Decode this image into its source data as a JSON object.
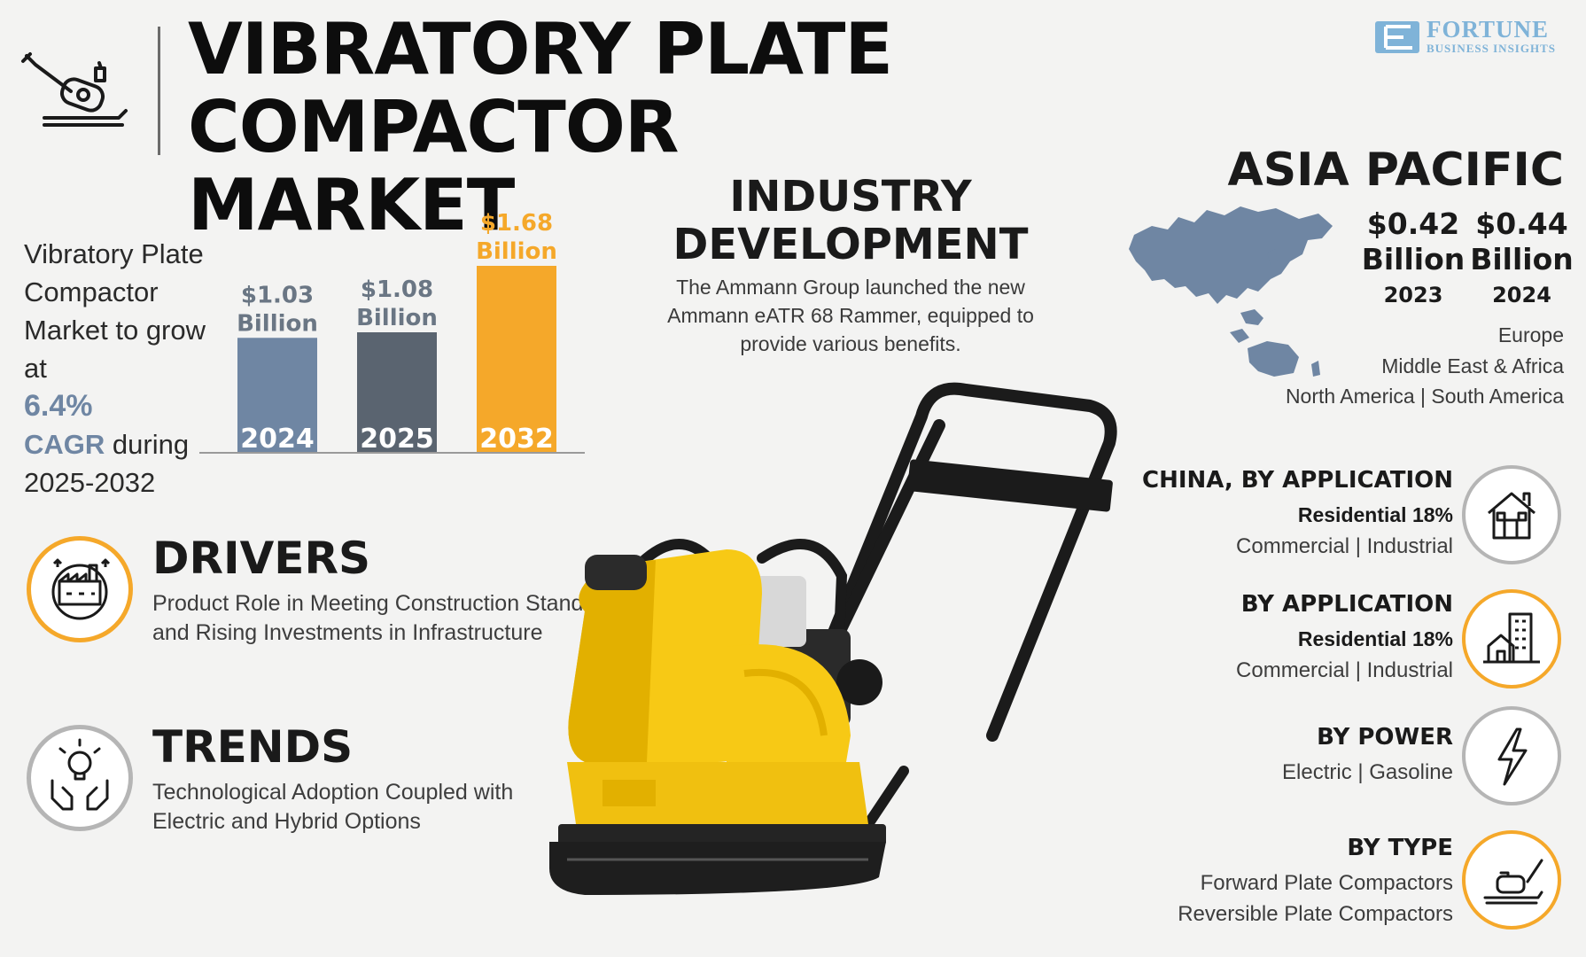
{
  "header": {
    "title_line1": "VIBRATORY PLATE COMPACTOR",
    "title_line2": "MARKET",
    "brand_name": "FORTUNE",
    "brand_sub": "BUSINESS INSIGHTS"
  },
  "cagr": {
    "lead": "Vibratory Plate Compactor Market to grow at",
    "value": "6.4%",
    "word": "CAGR",
    "tail": "during",
    "period": "2025-2032"
  },
  "chart_data": {
    "type": "bar",
    "categories": [
      "2024",
      "2025",
      "2032"
    ],
    "values": [
      1.03,
      1.08,
      1.68
    ],
    "value_labels": [
      "$1.03 Billion",
      "$1.08 Billion",
      "$1.68 Billion"
    ],
    "colors": [
      "#6f86a3",
      "#5a6470",
      "#f5a82a"
    ],
    "title": "",
    "xlabel": "",
    "ylabel": ""
  },
  "industry": {
    "title_line1": "INDUSTRY",
    "title_line2": "DEVELOPMENT",
    "text": "The Ammann Group launched the new Ammann eATR 68 Rammer, equipped to provide various benefits."
  },
  "region": {
    "title": "ASIA PACIFIC",
    "values": [
      {
        "amount": "$0.42",
        "unit": "Billion",
        "year": "2023"
      },
      {
        "amount": "$0.44",
        "unit": "Billion",
        "year": "2024"
      }
    ],
    "europe": "Europe",
    "mea": "Middle East & Africa",
    "na_sa": "North America  |  South America"
  },
  "drivers": {
    "title": "DRIVERS",
    "text": "Product Role in Meeting Construction Standards and Rising Investments in Infrastructure"
  },
  "trends": {
    "title": "TRENDS",
    "text": "Technological Adoption Coupled with Electric and Hybrid Options"
  },
  "segments": [
    {
      "title": "CHINA, BY APPLICATION",
      "share": "Residential 18%",
      "items": "Commercial  |  Industrial",
      "icon": "house-icon"
    },
    {
      "title": "BY APPLICATION",
      "share": "Residential 18%",
      "items": "Commercial  |  Industrial",
      "icon": "buildings-icon"
    },
    {
      "title": "BY POWER",
      "share": "",
      "items": "Electric  |  Gasoline",
      "icon": "lightning-icon"
    },
    {
      "title": "BY TYPE",
      "share": "",
      "items_line1": "Forward Plate Compactors",
      "items_line2": "Reversible Plate Compactors",
      "icon": "compactor-icon"
    }
  ],
  "colors": {
    "accent_orange": "#f5a82a",
    "accent_blue": "#6f86a3",
    "bar_gray": "#5a6470",
    "map_blue": "#6f86a3"
  }
}
